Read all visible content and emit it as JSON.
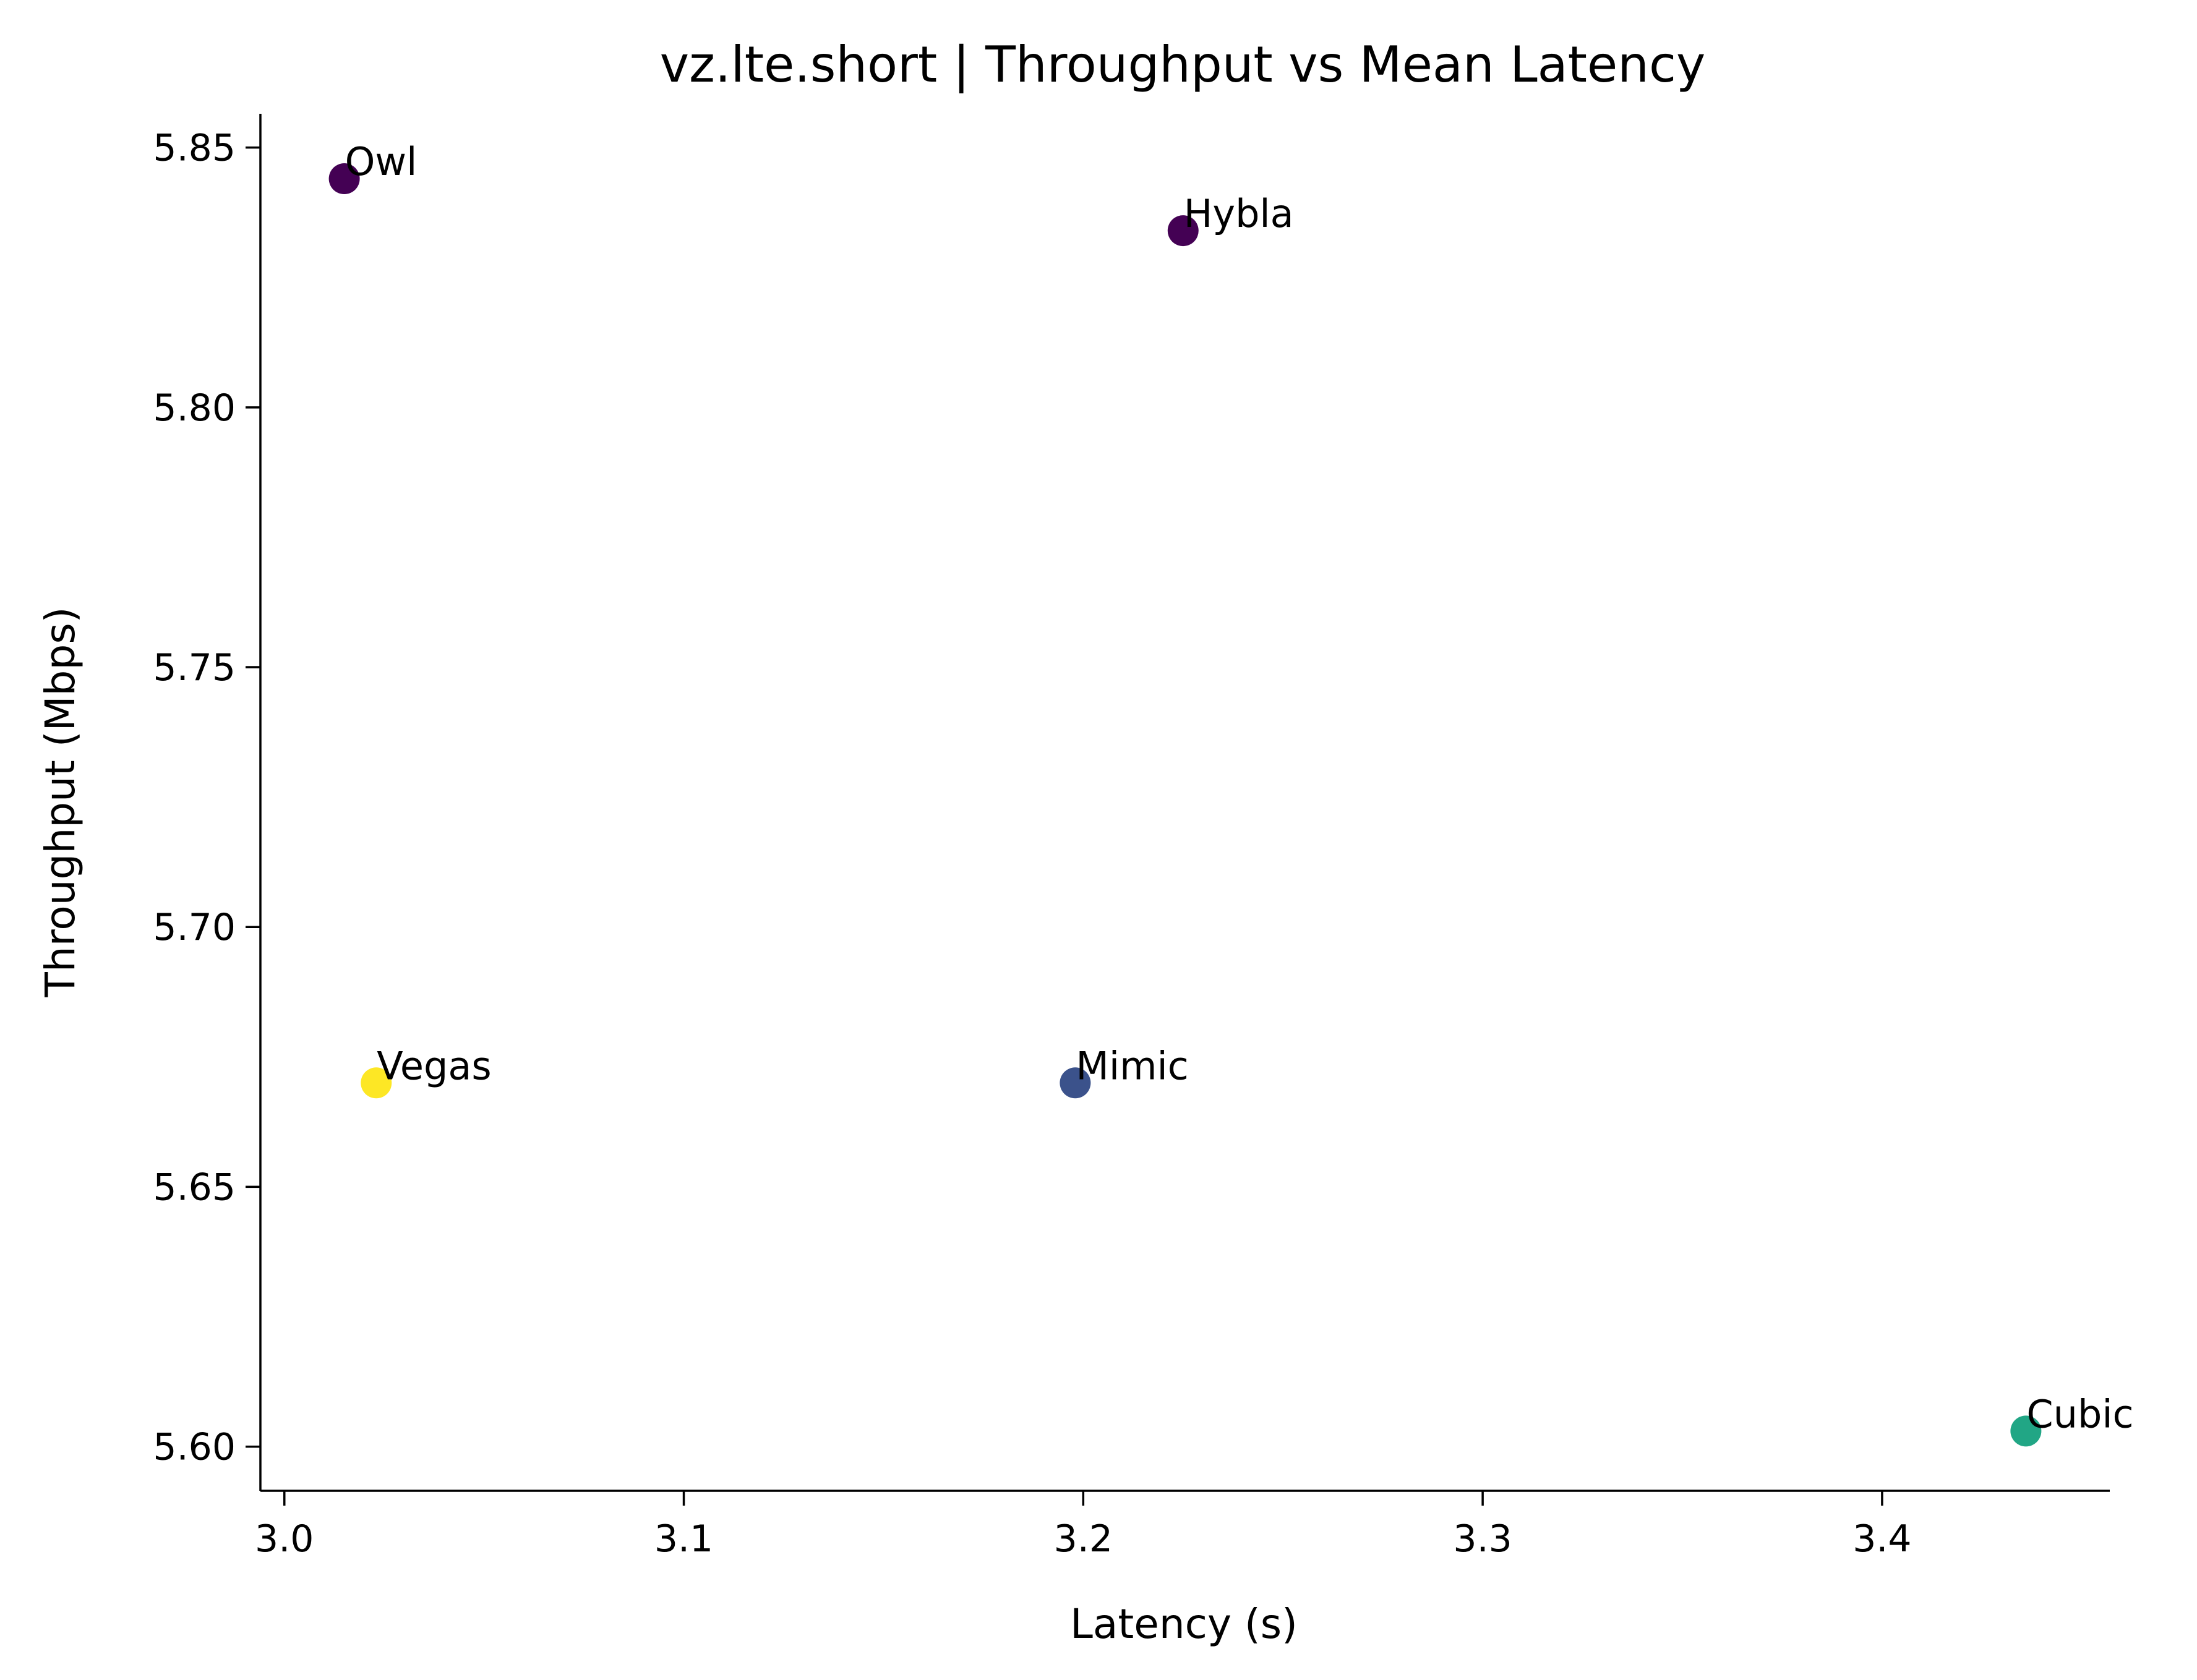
{
  "chart_data": {
    "type": "scatter",
    "title": "vz.lte.short | Throughput vs Mean Latency",
    "xlabel": "Latency (s)",
    "ylabel": "Throughput (Mbps)",
    "xlim": [
      2.994,
      3.457
    ],
    "ylim": [
      5.5915,
      5.8565
    ],
    "xticks": [
      3.0,
      3.1,
      3.2,
      3.3,
      3.4
    ],
    "xtick_labels": [
      "3.0",
      "3.1",
      "3.2",
      "3.3",
      "3.4"
    ],
    "yticks": [
      5.6,
      5.65,
      5.7,
      5.75,
      5.8,
      5.85
    ],
    "ytick_labels": [
      "5.60",
      "5.65",
      "5.70",
      "5.75",
      "5.80",
      "5.85"
    ],
    "grid": false,
    "points": [
      {
        "label": "Owl",
        "x": 3.015,
        "y": 5.844,
        "color": "#440154"
      },
      {
        "label": "Hybla",
        "x": 3.225,
        "y": 5.834,
        "color": "#440154"
      },
      {
        "label": "Vegas",
        "x": 3.023,
        "y": 5.67,
        "color": "#fde725"
      },
      {
        "label": "Mimic",
        "x": 3.198,
        "y": 5.67,
        "color": "#3b528b"
      },
      {
        "label": "Cubic",
        "x": 3.436,
        "y": 5.603,
        "color": "#21a685"
      }
    ]
  }
}
